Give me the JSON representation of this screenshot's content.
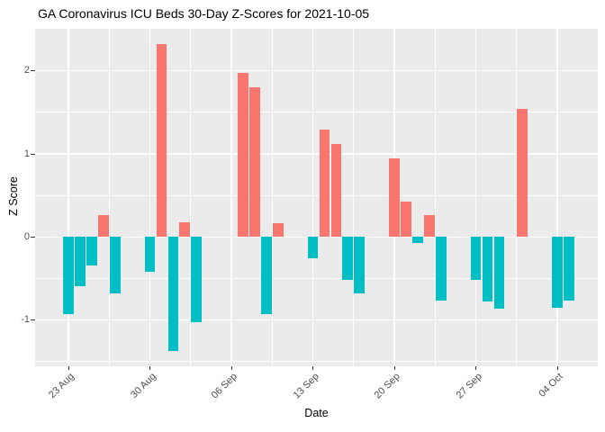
{
  "page": {
    "title": "GA Coronavirus ICU Beds 30-Day Z-Scores for 2021-10-05"
  },
  "chart_data": {
    "type": "bar",
    "title": "GA Coronavirus ICU Beds 30-Day Z-Scores for 2021-10-05",
    "xlabel": "Date",
    "ylabel": "Z Score",
    "grid": true,
    "legend": "none",
    "ylim": [
      -1.55,
      2.51
    ],
    "points": [
      {
        "date": "2021-08-23",
        "value": -0.93
      },
      {
        "date": "2021-08-24",
        "value": -0.59
      },
      {
        "date": "2021-08-25",
        "value": -0.34
      },
      {
        "date": "2021-08-26",
        "value": 0.26
      },
      {
        "date": "2021-08-27",
        "value": -0.68
      },
      {
        "date": "2021-08-30",
        "value": -0.42
      },
      {
        "date": "2021-08-31",
        "value": 2.32
      },
      {
        "date": "2021-09-01",
        "value": -1.37
      },
      {
        "date": "2021-09-02",
        "value": 0.18
      },
      {
        "date": "2021-09-03",
        "value": -1.03
      },
      {
        "date": "2021-09-07",
        "value": 1.98
      },
      {
        "date": "2021-09-08",
        "value": 1.8
      },
      {
        "date": "2021-09-09",
        "value": -0.93
      },
      {
        "date": "2021-09-10",
        "value": 0.17
      },
      {
        "date": "2021-09-13",
        "value": -0.26
      },
      {
        "date": "2021-09-14",
        "value": 1.29
      },
      {
        "date": "2021-09-15",
        "value": 1.12
      },
      {
        "date": "2021-09-16",
        "value": -0.52
      },
      {
        "date": "2021-09-17",
        "value": -0.68
      },
      {
        "date": "2021-09-20",
        "value": 0.95
      },
      {
        "date": "2021-09-21",
        "value": 0.43
      },
      {
        "date": "2021-09-22",
        "value": -0.07
      },
      {
        "date": "2021-09-23",
        "value": 0.26
      },
      {
        "date": "2021-09-24",
        "value": -0.77
      },
      {
        "date": "2021-09-27",
        "value": -0.52
      },
      {
        "date": "2021-09-28",
        "value": -0.78
      },
      {
        "date": "2021-09-29",
        "value": -0.86
      },
      {
        "date": "2021-10-01",
        "value": 1.54
      },
      {
        "date": "2021-10-04",
        "value": -0.85
      },
      {
        "date": "2021-10-05",
        "value": -0.77
      }
    ],
    "x_ticks": [
      {
        "date": "2021-08-23",
        "label": "23 Aug"
      },
      {
        "date": "2021-08-30",
        "label": "30 Aug"
      },
      {
        "date": "2021-09-06",
        "label": "06 Sep"
      },
      {
        "date": "2021-09-13",
        "label": "13 Sep"
      },
      {
        "date": "2021-09-20",
        "label": "20 Sep"
      },
      {
        "date": "2021-09-27",
        "label": "27 Sep"
      },
      {
        "date": "2021-10-04",
        "label": "04 Oct"
      }
    ],
    "y_ticks": [
      {
        "value": 2,
        "label": "2"
      },
      {
        "value": 1,
        "label": "1"
      },
      {
        "value": 0,
        "label": "0"
      },
      {
        "value": -1,
        "label": "-1"
      }
    ],
    "y_minor": [
      1.5,
      0.5,
      -0.5,
      -1.5
    ],
    "colors": {
      "positive_bar": "#F8766D",
      "negative_bar": "#00BFC4",
      "panel_background": "#EBEBEB",
      "gridline": "#FFFFFF",
      "axis_text": "#4D4D4D",
      "title_text": "#000000"
    }
  }
}
